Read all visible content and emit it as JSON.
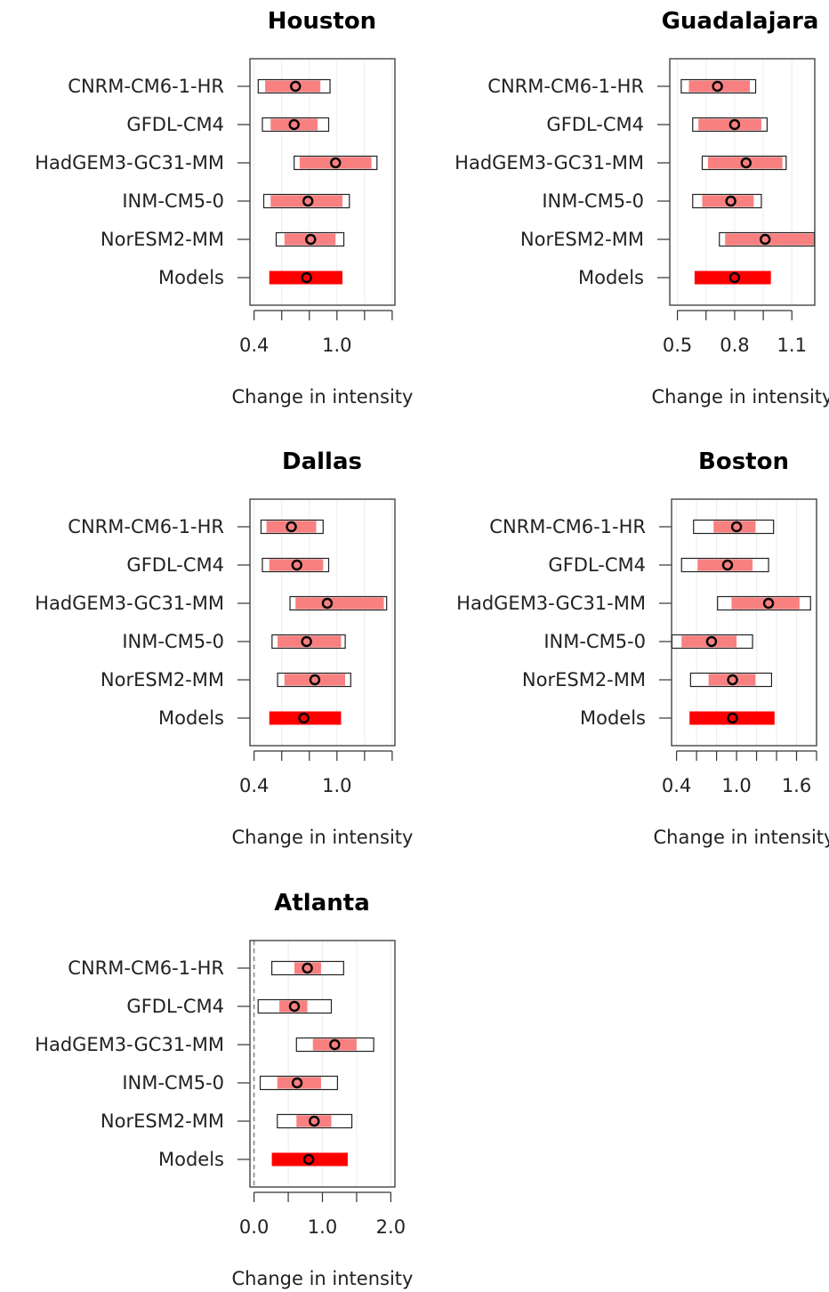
{
  "chart_data": [
    {
      "type": "interval",
      "title": "Houston",
      "xlabel": "Change in intensity",
      "categories": [
        "CNRM-CM6-1-HR",
        "GFDL-CM4",
        "HadGEM3-GC31-MM",
        "INM-CM5-0",
        "NorESM2-MM",
        "Models"
      ],
      "xlim": [
        0.37,
        1.42
      ],
      "xticks": [
        0.4,
        0.6,
        0.8,
        1.0,
        1.2,
        1.4
      ],
      "xtick_labels": [
        "0.4",
        "",
        "",
        "1.0",
        "",
        ""
      ],
      "outer": [
        [
          0.43,
          0.95
        ],
        [
          0.46,
          0.94
        ],
        [
          0.69,
          1.29
        ],
        [
          0.47,
          1.09
        ],
        [
          0.56,
          1.05
        ],
        [
          null,
          null
        ]
      ],
      "inner": [
        [
          0.48,
          0.88
        ],
        [
          0.52,
          0.86
        ],
        [
          0.73,
          1.25
        ],
        [
          0.52,
          1.04
        ],
        [
          0.62,
          0.99
        ],
        [
          0.51,
          1.04
        ]
      ],
      "best": [
        0.7,
        0.69,
        0.99,
        0.79,
        0.81,
        0.78
      ]
    },
    {
      "type": "interval",
      "title": "Guadalajara",
      "xlabel": "Change in intensity",
      "categories": [
        "CNRM-CM6-1-HR",
        "GFDL-CM4",
        "HadGEM3-GC31-MM",
        "INM-CM5-0",
        "NorESM2-MM",
        "Models"
      ],
      "xlim": [
        0.46,
        1.22
      ],
      "xticks": [
        0.5,
        0.65,
        0.8,
        0.95,
        1.1
      ],
      "xtick_labels": [
        "0.5",
        "",
        "0.8",
        "",
        "1.1"
      ],
      "outer": [
        [
          0.52,
          0.91
        ],
        [
          0.58,
          0.97
        ],
        [
          0.63,
          1.07
        ],
        [
          0.58,
          0.94
        ],
        [
          0.72,
          1.22
        ],
        [
          null,
          null
        ]
      ],
      "inner": [
        [
          0.56,
          0.88
        ],
        [
          0.61,
          0.94
        ],
        [
          0.66,
          1.05
        ],
        [
          0.63,
          0.9
        ],
        [
          0.75,
          1.22
        ],
        [
          0.59,
          0.99
        ]
      ],
      "best": [
        0.71,
        0.8,
        0.86,
        0.78,
        0.96,
        0.8
      ]
    },
    {
      "type": "interval",
      "title": "Dallas",
      "xlabel": "Change in intensity",
      "categories": [
        "CNRM-CM6-1-HR",
        "GFDL-CM4",
        "HadGEM3-GC31-MM",
        "INM-CM5-0",
        "NorESM2-MM",
        "Models"
      ],
      "xlim": [
        0.37,
        1.42
      ],
      "xticks": [
        0.4,
        0.6,
        0.8,
        1.0,
        1.2,
        1.4
      ],
      "xtick_labels": [
        "0.4",
        "",
        "",
        "1.0",
        "",
        ""
      ],
      "outer": [
        [
          0.45,
          0.9
        ],
        [
          0.46,
          0.94
        ],
        [
          0.66,
          1.36
        ],
        [
          0.53,
          1.06
        ],
        [
          0.57,
          1.1
        ],
        [
          null,
          null
        ]
      ],
      "inner": [
        [
          0.49,
          0.85
        ],
        [
          0.51,
          0.9
        ],
        [
          0.7,
          1.34
        ],
        [
          0.57,
          1.03
        ],
        [
          0.62,
          1.06
        ],
        [
          0.51,
          1.03
        ]
      ],
      "best": [
        0.67,
        0.71,
        0.93,
        0.78,
        0.84,
        0.76
      ]
    },
    {
      "type": "interval",
      "title": "Boston",
      "xlabel": "Change in intensity",
      "categories": [
        "CNRM-CM6-1-HR",
        "GFDL-CM4",
        "HadGEM3-GC31-MM",
        "INM-CM5-0",
        "NorESM2-MM",
        "Models"
      ],
      "xlim": [
        0.35,
        1.8
      ],
      "xticks": [
        0.4,
        0.6,
        0.8,
        1.0,
        1.2,
        1.4,
        1.6,
        1.8
      ],
      "xtick_labels": [
        "0.4",
        "",
        "",
        "1.0",
        "",
        "",
        "1.6",
        ""
      ],
      "outer": [
        [
          0.57,
          1.37
        ],
        [
          0.45,
          1.32
        ],
        [
          0.81,
          1.74
        ],
        [
          0.35,
          1.16
        ],
        [
          0.54,
          1.35
        ],
        [
          null,
          null
        ]
      ],
      "inner": [
        [
          0.77,
          1.19
        ],
        [
          0.61,
          1.16
        ],
        [
          0.95,
          1.63
        ],
        [
          0.45,
          1.0
        ],
        [
          0.72,
          1.19
        ],
        [
          0.53,
          1.38
        ]
      ],
      "best": [
        1.0,
        0.91,
        1.32,
        0.75,
        0.96,
        0.96
      ]
    },
    {
      "type": "interval",
      "title": "Atlanta",
      "xlabel": "Change in intensity",
      "categories": [
        "CNRM-CM6-1-HR",
        "GFDL-CM4",
        "HadGEM3-GC31-MM",
        "INM-CM5-0",
        "NorESM2-MM",
        "Models"
      ],
      "xlim": [
        -0.06,
        2.06
      ],
      "xticks": [
        0.0,
        0.5,
        1.0,
        1.5,
        2.0
      ],
      "xtick_labels": [
        "0.0",
        "",
        "1.0",
        "",
        "2.0"
      ],
      "reference_line": 0.0,
      "outer": [
        [
          0.26,
          1.31
        ],
        [
          0.06,
          1.13
        ],
        [
          0.62,
          1.75
        ],
        [
          0.09,
          1.22
        ],
        [
          0.34,
          1.43
        ],
        [
          null,
          null
        ]
      ],
      "inner": [
        [
          0.59,
          0.98
        ],
        [
          0.37,
          0.78
        ],
        [
          0.86,
          1.5
        ],
        [
          0.34,
          0.98
        ],
        [
          0.62,
          1.13
        ],
        [
          0.26,
          1.37
        ]
      ],
      "best": [
        0.78,
        0.59,
        1.18,
        0.63,
        0.88,
        0.8
      ]
    }
  ]
}
